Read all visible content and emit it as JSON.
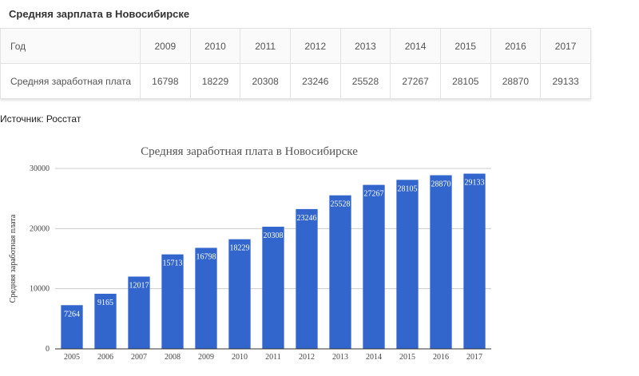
{
  "heading": "Средняя зарплата в Новосибирске",
  "table": {
    "header_label": "Год",
    "row_label": "Средняя заработная плата",
    "years": [
      "2009",
      "2010",
      "2011",
      "2012",
      "2013",
      "2014",
      "2015",
      "2016",
      "2017"
    ],
    "values": [
      "16798",
      "18229",
      "20308",
      "23246",
      "25528",
      "27267",
      "28105",
      "28870",
      "29133"
    ]
  },
  "source": "Источник: Росстат",
  "chart_data": {
    "type": "bar",
    "title": "Средняя заработная плата в Новосибирске",
    "xlabel": "",
    "ylabel": "Средняя заработная плата",
    "categories": [
      "2005",
      "2006",
      "2007",
      "2008",
      "2009",
      "2010",
      "2011",
      "2012",
      "2013",
      "2014",
      "2015",
      "2016",
      "2017"
    ],
    "values": [
      7264,
      9165,
      12017,
      15713,
      16798,
      18229,
      20308,
      23246,
      25528,
      27267,
      28105,
      28870,
      29133
    ],
    "ylim": [
      0,
      30000
    ],
    "yticks": [
      "0",
      "10000",
      "20000",
      "30000"
    ],
    "grid": true,
    "legend": "none",
    "bar_color": "#3366cc"
  }
}
